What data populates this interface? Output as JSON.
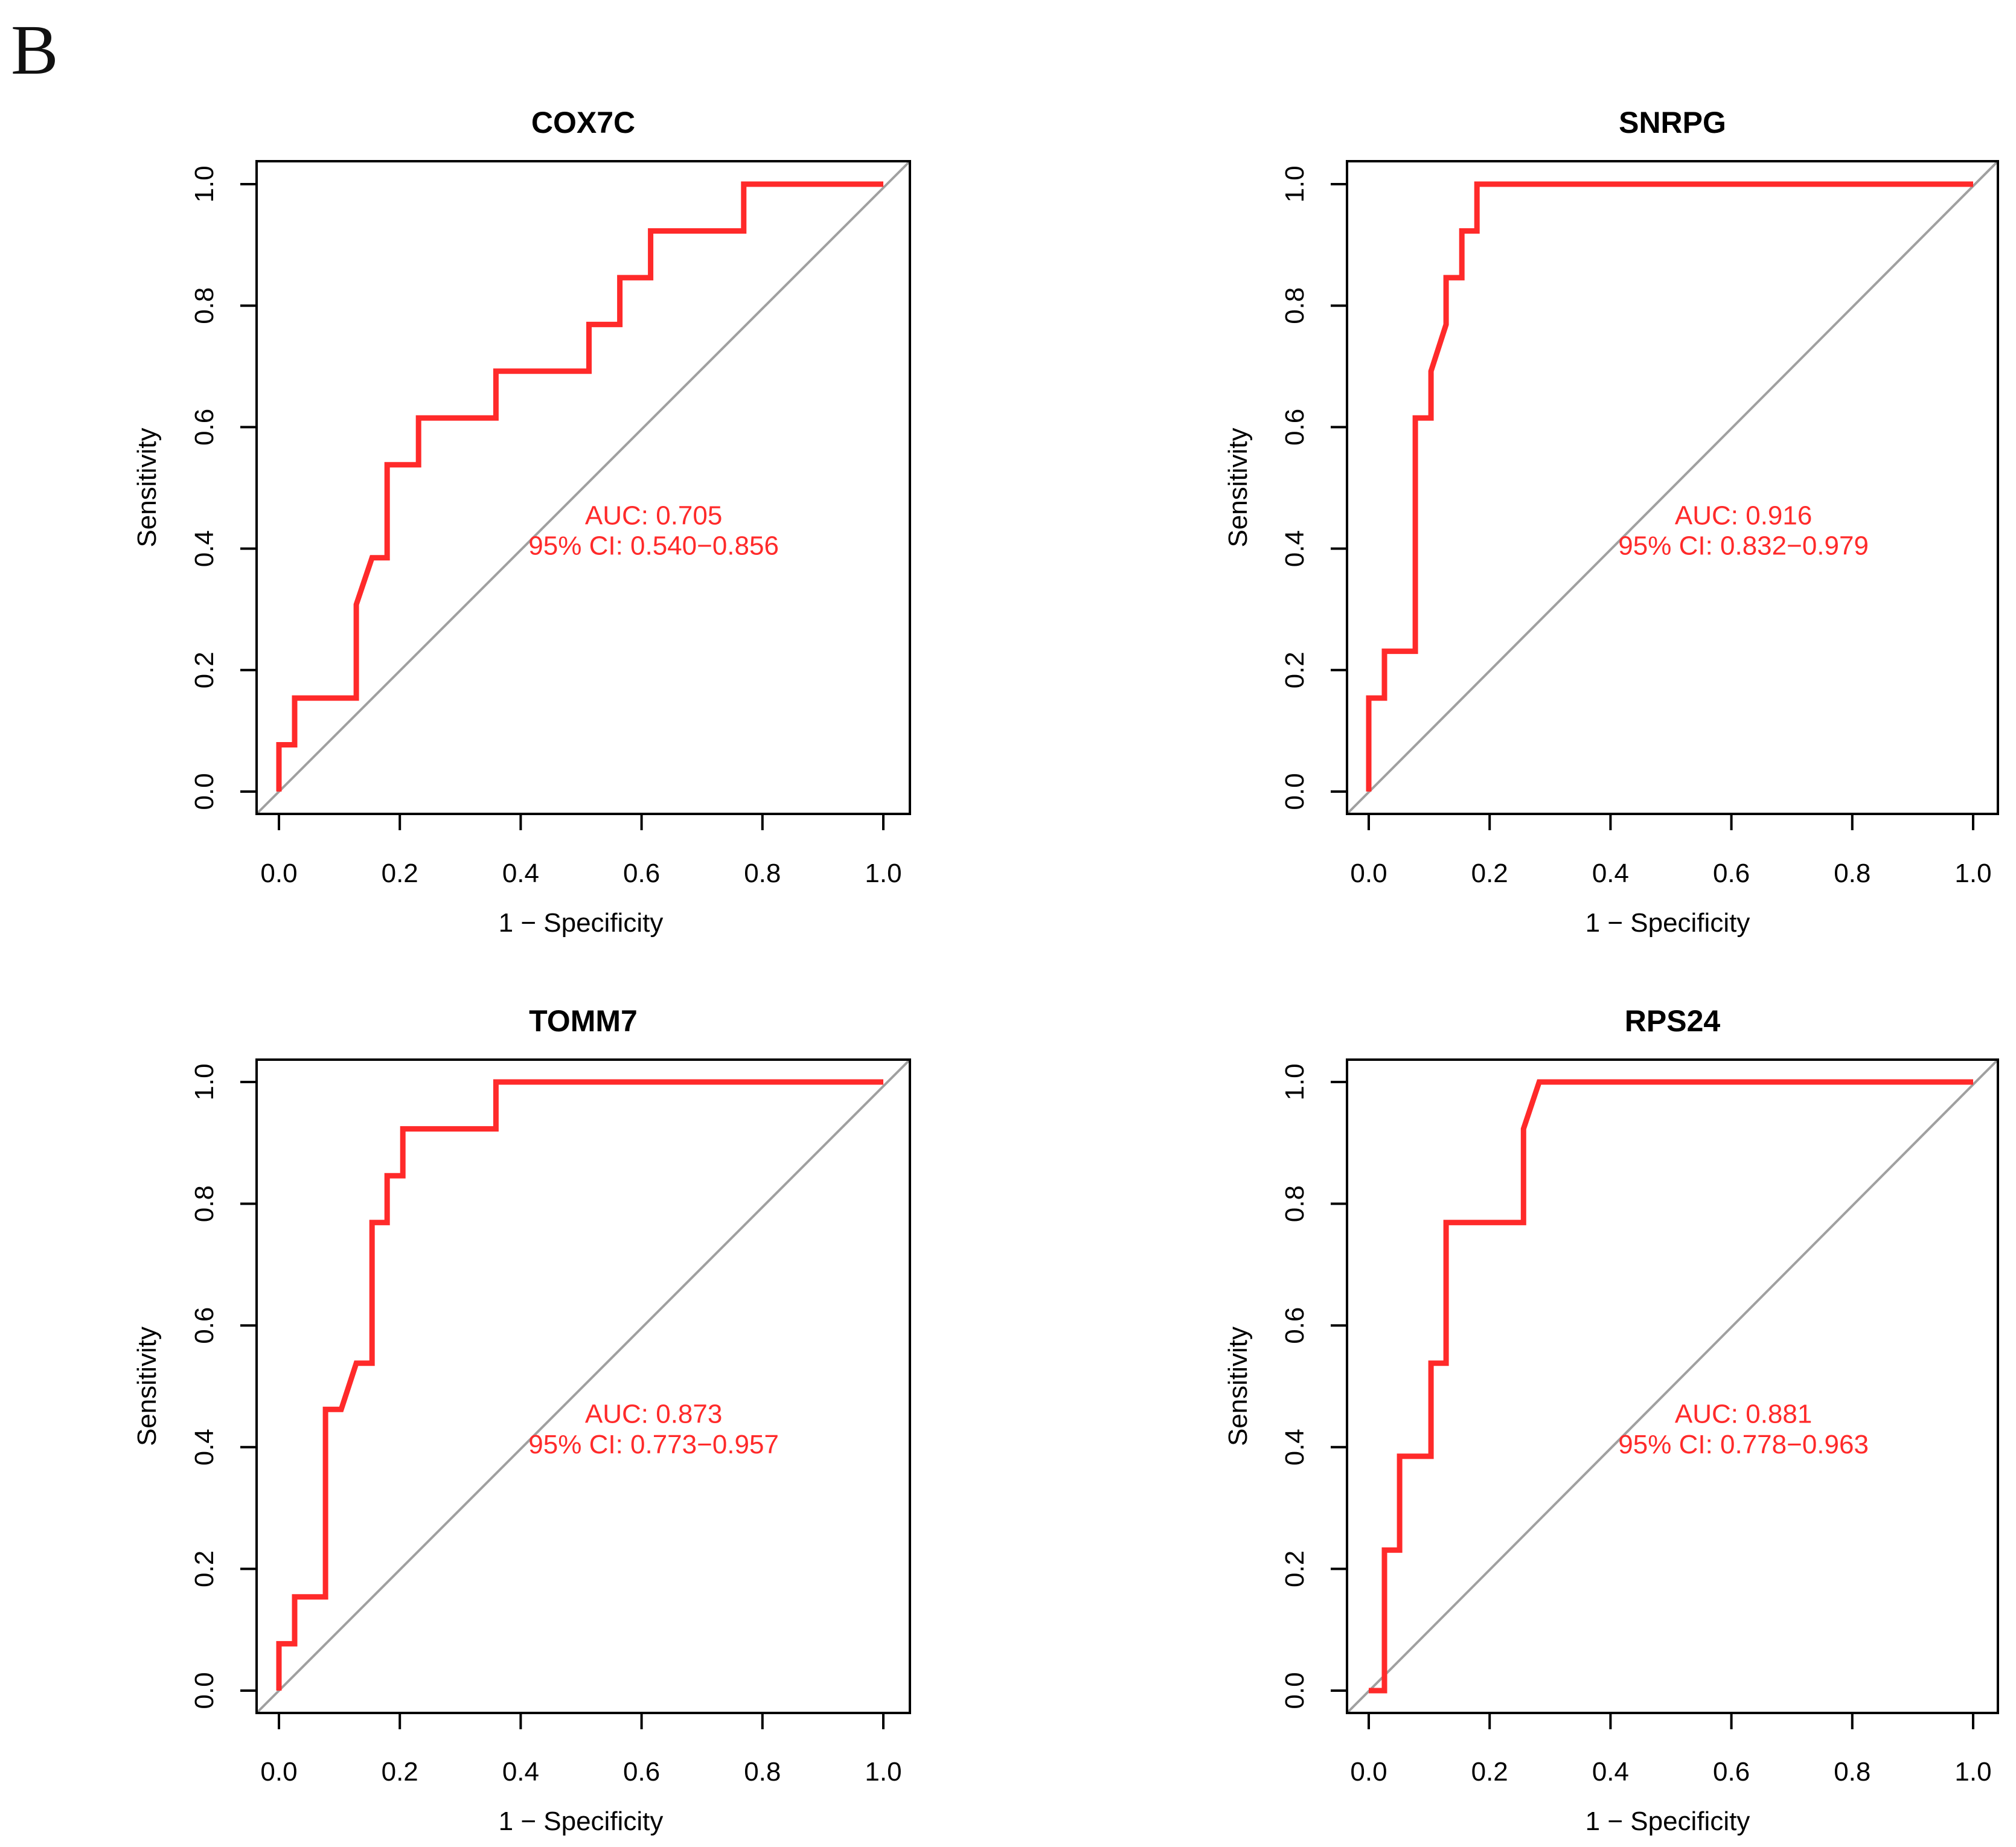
{
  "figure": {
    "panel_label": "B"
  },
  "colors": {
    "roc": "#ff2a2a",
    "diagonal": "#a0a0a0",
    "annotation": "#ff2a2a",
    "frame": "#000000"
  },
  "chart_data": [
    {
      "type": "line",
      "title": "COX7C",
      "xlabel": "1 − Specificity",
      "ylabel": "Sensitivity",
      "xlim": [
        0,
        1
      ],
      "ylim": [
        0,
        1
      ],
      "xticks": [
        "0.0",
        "0.2",
        "0.4",
        "0.6",
        "0.8",
        "1.0"
      ],
      "yticks": [
        "0.0",
        "0.2",
        "0.4",
        "0.6",
        "0.8",
        "1.0"
      ],
      "auc_text": "AUC: 0.705",
      "ci_text": "95% CI: 0.540−0.856",
      "series": [
        {
          "name": "ROC",
          "x": [
            0,
            0,
            0.026,
            0.026,
            0.128,
            0.128,
            0.154,
            0.179,
            0.179,
            0.231,
            0.231,
            0.359,
            0.359,
            0.513,
            0.513,
            0.564,
            0.564,
            0.615,
            0.615,
            0.769,
            0.769,
            1.0
          ],
          "y": [
            0,
            0.077,
            0.077,
            0.154,
            0.154,
            0.308,
            0.385,
            0.385,
            0.538,
            0.538,
            0.615,
            0.615,
            0.692,
            0.692,
            0.769,
            0.769,
            0.846,
            0.846,
            0.923,
            0.923,
            1.0,
            1.0
          ]
        }
      ]
    },
    {
      "type": "line",
      "title": "SNRPG",
      "xlabel": "1 − Specificity",
      "ylabel": "Sensitivity",
      "xlim": [
        0,
        1
      ],
      "ylim": [
        0,
        1
      ],
      "xticks": [
        "0.0",
        "0.2",
        "0.4",
        "0.6",
        "0.8",
        "1.0"
      ],
      "yticks": [
        "0.0",
        "0.2",
        "0.4",
        "0.6",
        "0.8",
        "1.0"
      ],
      "auc_text": "AUC: 0.916",
      "ci_text": "95% CI: 0.832−0.979",
      "series": [
        {
          "name": "ROC",
          "x": [
            0,
            0,
            0.026,
            0.026,
            0.077,
            0.077,
            0.103,
            0.103,
            0.128,
            0.128,
            0.154,
            0.154,
            0.179,
            0.179,
            1.0
          ],
          "y": [
            0,
            0.154,
            0.154,
            0.231,
            0.231,
            0.615,
            0.615,
            0.692,
            0.769,
            0.846,
            0.846,
            0.923,
            0.923,
            1.0,
            1.0
          ]
        }
      ]
    },
    {
      "type": "line",
      "title": "TOMM7",
      "xlabel": "1 − Specificity",
      "ylabel": "Sensitivity",
      "xlim": [
        0,
        1
      ],
      "ylim": [
        0,
        1
      ],
      "xticks": [
        "0.0",
        "0.2",
        "0.4",
        "0.6",
        "0.8",
        "1.0"
      ],
      "yticks": [
        "0.0",
        "0.2",
        "0.4",
        "0.6",
        "0.8",
        "1.0"
      ],
      "auc_text": "AUC: 0.873",
      "ci_text": "95% CI: 0.773−0.957",
      "series": [
        {
          "name": "ROC",
          "x": [
            0,
            0,
            0.026,
            0.026,
            0.077,
            0.077,
            0.103,
            0.128,
            0.154,
            0.154,
            0.179,
            0.179,
            0.205,
            0.205,
            0.359,
            0.359,
            1.0
          ],
          "y": [
            0,
            0.077,
            0.077,
            0.154,
            0.154,
            0.462,
            0.462,
            0.538,
            0.538,
            0.769,
            0.769,
            0.846,
            0.846,
            0.923,
            0.923,
            1.0,
            1.0
          ]
        }
      ]
    },
    {
      "type": "line",
      "title": "RPS24",
      "xlabel": "1 − Specificity",
      "ylabel": "Sensitivity",
      "xlim": [
        0,
        1
      ],
      "ylim": [
        0,
        1
      ],
      "xticks": [
        "0.0",
        "0.2",
        "0.4",
        "0.6",
        "0.8",
        "1.0"
      ],
      "yticks": [
        "0.0",
        "0.2",
        "0.4",
        "0.6",
        "0.8",
        "1.0"
      ],
      "auc_text": "AUC: 0.881",
      "ci_text": "95% CI: 0.778−0.963",
      "series": [
        {
          "name": "ROC",
          "x": [
            0,
            0.026,
            0.026,
            0.051,
            0.051,
            0.103,
            0.103,
            0.128,
            0.128,
            0.256,
            0.256,
            0.282,
            1.0
          ],
          "y": [
            0,
            0,
            0.231,
            0.231,
            0.385,
            0.385,
            0.538,
            0.538,
            0.769,
            0.769,
            0.923,
            1.0,
            1.0
          ]
        }
      ]
    }
  ]
}
